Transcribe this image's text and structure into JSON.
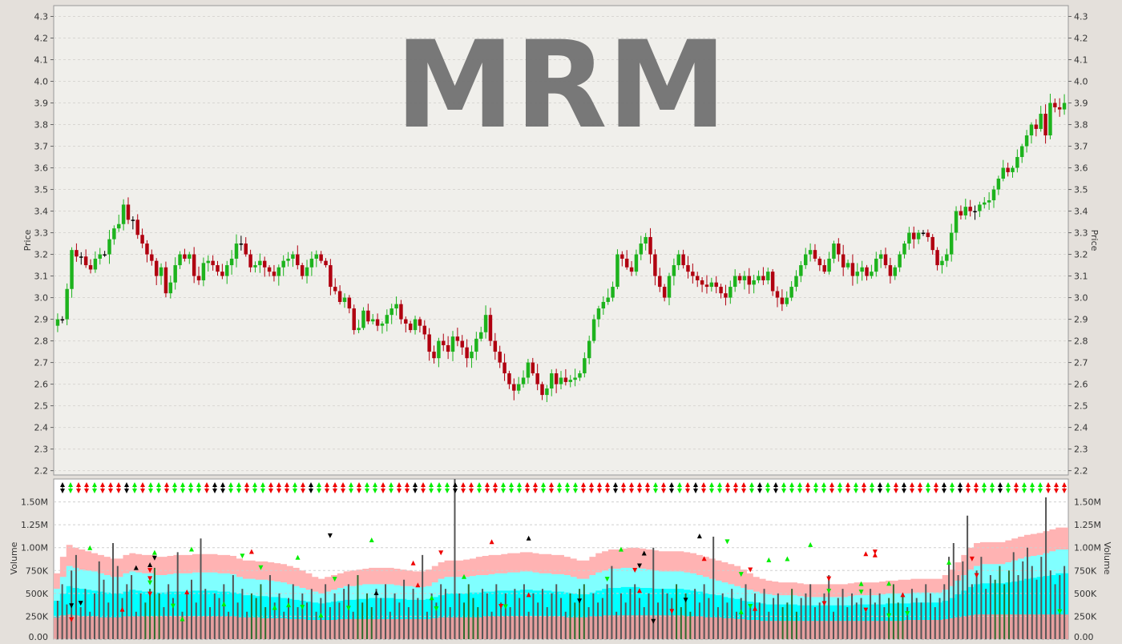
{
  "watermark": "MRM",
  "colors": {
    "up": "#1db31d",
    "down": "#b00010",
    "neutral": "#000000",
    "vol_band_outer": "#ffb3b3",
    "vol_band_mid": "#80ffff",
    "vol_band_inner": "#00ffff",
    "vol_band_base": "#e6a0a0",
    "marker_up": "#00ee00",
    "marker_down": "#ee0000"
  },
  "chart_data": [
    {
      "type": "candlestick",
      "ylabel": "Price",
      "ylim": [
        2.18,
        4.35
      ],
      "yticks": [
        "2.2",
        "2.3",
        "2.4",
        "2.5",
        "2.6",
        "2.7",
        "2.8",
        "2.9",
        "3.0",
        "3.1",
        "3.2",
        "3.3",
        "3.4",
        "3.5",
        "3.6",
        "3.7",
        "3.8",
        "3.9",
        "4.0",
        "4.1",
        "4.2",
        "4.3"
      ],
      "grid": true,
      "close": [
        2.9,
        2.9,
        3.04,
        3.22,
        3.19,
        3.19,
        3.15,
        3.13,
        3.18,
        3.2,
        3.2,
        3.27,
        3.32,
        3.34,
        3.43,
        3.36,
        3.36,
        3.29,
        3.25,
        3.2,
        3.17,
        3.1,
        3.14,
        3.02,
        3.07,
        3.15,
        3.2,
        3.18,
        3.2,
        3.1,
        3.08,
        3.16,
        3.17,
        3.15,
        3.12,
        3.1,
        3.15,
        3.18,
        3.25,
        3.25,
        3.2,
        3.14,
        3.15,
        3.17,
        3.14,
        3.12,
        3.1,
        3.14,
        3.17,
        3.18,
        3.2,
        3.15,
        3.1,
        3.14,
        3.18,
        3.2,
        3.17,
        3.15,
        3.05,
        3.03,
        2.98,
        3.0,
        2.95,
        2.85,
        2.86,
        2.94,
        2.89,
        2.9,
        2.87,
        2.88,
        2.92,
        2.95,
        2.97,
        2.9,
        2.88,
        2.85,
        2.9,
        2.87,
        2.83,
        2.75,
        2.72,
        2.8,
        2.78,
        2.75,
        2.82,
        2.8,
        2.77,
        2.72,
        2.75,
        2.81,
        2.84,
        2.92,
        2.8,
        2.75,
        2.7,
        2.65,
        2.6,
        2.57,
        2.6,
        2.63,
        2.7,
        2.65,
        2.6,
        2.55,
        2.58,
        2.65,
        2.6,
        2.63,
        2.61,
        2.62,
        2.63,
        2.65,
        2.72,
        2.8,
        2.9,
        2.95,
        2.98,
        3.0,
        3.05,
        3.2,
        3.18,
        3.14,
        3.12,
        3.2,
        3.25,
        3.28,
        3.2,
        3.1,
        3.05,
        3.0,
        3.1,
        3.15,
        3.2,
        3.15,
        3.12,
        3.1,
        3.08,
        3.06,
        3.05,
        3.07,
        3.05,
        3.02,
        3.0,
        3.05,
        3.1,
        3.08,
        3.1,
        3.06,
        3.08,
        3.1,
        3.08,
        3.12,
        3.03,
        3.0,
        2.97,
        3.0,
        3.05,
        3.1,
        3.15,
        3.2,
        3.22,
        3.18,
        3.15,
        3.12,
        3.18,
        3.25,
        3.2,
        3.14,
        3.16,
        3.1,
        3.12,
        3.14,
        3.1,
        3.12,
        3.18,
        3.2,
        3.15,
        3.1,
        3.14,
        3.2,
        3.25,
        3.3,
        3.27,
        3.3,
        3.3,
        3.28,
        3.22,
        3.15,
        3.17,
        3.2,
        3.3,
        3.4,
        3.38,
        3.42,
        3.4,
        3.4,
        3.43,
        3.44,
        3.45,
        3.5,
        3.55,
        3.6,
        3.58,
        3.6,
        3.65,
        3.7,
        3.75,
        3.8,
        3.78,
        3.85,
        3.75,
        3.9,
        3.88,
        3.87,
        3.9
      ]
    },
    {
      "type": "bar",
      "ylabel": "Volume",
      "ylim": [
        0,
        1.75
      ],
      "yticks": [
        "0.00",
        "250K",
        "500K",
        "750K",
        "1.00M",
        "1.25M",
        "1.50M"
      ],
      "grid": true,
      "values": [
        0.42,
        0.6,
        0.38,
        0.75,
        0.92,
        0.35,
        0.55,
        0.3,
        0.5,
        0.85,
        0.65,
        0.4,
        1.05,
        0.8,
        0.45,
        0.6,
        0.7,
        0.3,
        0.5,
        0.4,
        0.55,
        0.78,
        0.5,
        0.35,
        0.6,
        0.45,
        0.95,
        0.3,
        0.5,
        0.65,
        0.4,
        1.1,
        0.55,
        0.35,
        0.5,
        0.45,
        0.6,
        0.3,
        0.7,
        0.4,
        0.55,
        0.3,
        0.5,
        0.45,
        0.6,
        0.35,
        0.7,
        0.4,
        0.5,
        0.3,
        0.45,
        0.6,
        0.35,
        0.5,
        0.4,
        0.55,
        0.3,
        0.45,
        0.6,
        0.35,
        0.5,
        0.4,
        0.55,
        0.6,
        0.3,
        0.7,
        0.4,
        0.5,
        0.35,
        0.55,
        0.45,
        0.6,
        0.3,
        0.5,
        0.4,
        0.65,
        0.35,
        0.55,
        0.45,
        0.92,
        0.3,
        0.5,
        0.4,
        0.6,
        0.55,
        0.35,
        1.75,
        0.5,
        0.4,
        0.6,
        0.45,
        0.35,
        0.55,
        0.5,
        0.3,
        0.6,
        0.4,
        0.5,
        0.35,
        0.55,
        0.45,
        0.6,
        0.3,
        0.5,
        0.4,
        0.55,
        0.35,
        0.5,
        0.6,
        0.45,
        0.3,
        0.5,
        0.4,
        0.55,
        0.6,
        0.35,
        0.5,
        0.4,
        0.45,
        0.6,
        0.8,
        0.3,
        0.5,
        0.4,
        0.55,
        0.6,
        0.45,
        0.35,
        0.5,
        1.0,
        0.4,
        0.55,
        0.5,
        0.45,
        0.6,
        0.35,
        0.5,
        0.3,
        0.55,
        0.4,
        0.6,
        0.45,
        1.12,
        0.35,
        0.5,
        0.4,
        0.55,
        0.3,
        0.45,
        0.6,
        0.35,
        0.5,
        0.4,
        0.55,
        0.3,
        0.45,
        0.5,
        0.35,
        0.4,
        0.55,
        0.3,
        0.45,
        0.5,
        0.6,
        0.35,
        0.4,
        0.5,
        0.7,
        0.3,
        0.45,
        0.55,
        0.35,
        0.5,
        0.4,
        0.45,
        0.3,
        0.55,
        0.4,
        0.5,
        0.35,
        0.45,
        0.6,
        0.4,
        0.5,
        0.35,
        0.55,
        0.45,
        0.4,
        0.6,
        0.5,
        0.35,
        0.45,
        0.6,
        0.9,
        1.05,
        0.7,
        0.85,
        1.35,
        0.6,
        0.75,
        0.9,
        0.55,
        0.7,
        0.65,
        0.8,
        0.6,
        0.75,
        0.95,
        0.7,
        0.85,
        1.0,
        0.8,
        0.65,
        0.9,
        1.55,
        0.75,
        0.6,
        0.7,
        0.8
      ],
      "bands": {
        "outer": [
          0.72,
          0.9,
          1.03,
          1.0,
          0.98,
          0.96,
          0.94,
          0.92,
          0.9,
          0.88,
          0.88,
          0.92,
          0.94,
          0.93,
          0.92,
          0.92,
          0.9,
          0.9,
          0.91,
          0.92,
          0.92,
          0.92,
          0.93,
          0.93,
          0.93,
          0.93,
          0.92,
          0.92,
          0.91,
          0.88,
          0.86,
          0.86,
          0.85,
          0.85,
          0.84,
          0.83,
          0.82,
          0.8,
          0.78,
          0.75,
          0.72,
          0.68,
          0.66,
          0.68,
          0.7,
          0.72,
          0.74,
          0.75,
          0.76,
          0.77,
          0.78,
          0.78,
          0.78,
          0.78,
          0.77,
          0.76,
          0.75,
          0.74,
          0.74,
          0.76,
          0.8,
          0.84,
          0.86,
          0.86,
          0.86,
          0.87,
          0.88,
          0.9,
          0.91,
          0.92,
          0.92,
          0.93,
          0.94,
          0.94,
          0.95,
          0.95,
          0.94,
          0.93,
          0.93,
          0.92,
          0.92,
          0.9,
          0.88,
          0.86,
          0.86,
          0.9,
          0.94,
          0.96,
          0.98,
          0.98,
          0.99,
          1.0,
          1.0,
          0.99,
          0.98,
          0.97,
          0.96,
          0.96,
          0.96,
          0.96,
          0.95,
          0.94,
          0.92,
          0.9,
          0.88,
          0.86,
          0.84,
          0.82,
          0.8,
          0.76,
          0.72,
          0.68,
          0.66,
          0.64,
          0.63,
          0.62,
          0.62,
          0.62,
          0.61,
          0.6,
          0.6,
          0.6,
          0.6,
          0.6,
          0.6,
          0.6,
          0.61,
          0.62,
          0.62,
          0.62,
          0.62,
          0.63,
          0.64,
          0.64,
          0.65,
          0.65,
          0.66,
          0.66,
          0.66,
          0.66,
          0.66,
          0.7,
          0.76,
          0.84,
          0.92,
          1.0,
          1.05,
          1.06,
          1.06,
          1.06,
          1.06,
          1.08,
          1.1,
          1.12,
          1.14,
          1.15,
          1.16,
          1.18,
          1.2,
          1.22,
          1.22
        ],
        "mid": [
          0.55,
          0.68,
          0.8,
          0.78,
          0.76,
          0.75,
          0.74,
          0.72,
          0.7,
          0.68,
          0.68,
          0.72,
          0.74,
          0.73,
          0.72,
          0.72,
          0.7,
          0.7,
          0.71,
          0.72,
          0.72,
          0.72,
          0.73,
          0.73,
          0.73,
          0.73,
          0.72,
          0.72,
          0.71,
          0.68,
          0.66,
          0.66,
          0.65,
          0.65,
          0.64,
          0.63,
          0.62,
          0.6,
          0.58,
          0.56,
          0.54,
          0.52,
          0.5,
          0.52,
          0.54,
          0.56,
          0.58,
          0.58,
          0.59,
          0.6,
          0.6,
          0.6,
          0.6,
          0.6,
          0.59,
          0.58,
          0.58,
          0.57,
          0.57,
          0.58,
          0.62,
          0.66,
          0.68,
          0.68,
          0.68,
          0.68,
          0.69,
          0.7,
          0.7,
          0.71,
          0.72,
          0.72,
          0.73,
          0.73,
          0.74,
          0.74,
          0.73,
          0.72,
          0.72,
          0.71,
          0.71,
          0.7,
          0.68,
          0.66,
          0.66,
          0.7,
          0.73,
          0.75,
          0.77,
          0.77,
          0.78,
          0.78,
          0.78,
          0.77,
          0.76,
          0.75,
          0.74,
          0.74,
          0.74,
          0.74,
          0.73,
          0.72,
          0.7,
          0.68,
          0.66,
          0.64,
          0.62,
          0.6,
          0.58,
          0.56,
          0.54,
          0.52,
          0.5,
          0.49,
          0.48,
          0.48,
          0.48,
          0.48,
          0.47,
          0.46,
          0.46,
          0.46,
          0.46,
          0.46,
          0.46,
          0.46,
          0.47,
          0.48,
          0.48,
          0.48,
          0.48,
          0.49,
          0.5,
          0.5,
          0.5,
          0.5,
          0.51,
          0.51,
          0.51,
          0.51,
          0.51,
          0.54,
          0.58,
          0.64,
          0.7,
          0.76,
          0.8,
          0.82,
          0.82,
          0.82,
          0.82,
          0.84,
          0.86,
          0.88,
          0.9,
          0.91,
          0.92,
          0.94,
          0.96,
          0.98,
          0.98
        ],
        "inner": [
          0.42,
          0.5,
          0.58,
          0.56,
          0.55,
          0.54,
          0.53,
          0.52,
          0.51,
          0.5,
          0.5,
          0.52,
          0.54,
          0.53,
          0.52,
          0.52,
          0.51,
          0.51,
          0.52,
          0.52,
          0.52,
          0.52,
          0.53,
          0.53,
          0.53,
          0.53,
          0.52,
          0.52,
          0.51,
          0.5,
          0.48,
          0.48,
          0.47,
          0.47,
          0.46,
          0.46,
          0.45,
          0.44,
          0.43,
          0.42,
          0.41,
          0.4,
          0.39,
          0.4,
          0.41,
          0.42,
          0.43,
          0.43,
          0.44,
          0.44,
          0.45,
          0.45,
          0.45,
          0.45,
          0.44,
          0.44,
          0.43,
          0.43,
          0.43,
          0.44,
          0.46,
          0.48,
          0.5,
          0.5,
          0.5,
          0.5,
          0.51,
          0.51,
          0.52,
          0.52,
          0.53,
          0.53,
          0.53,
          0.53,
          0.54,
          0.54,
          0.53,
          0.53,
          0.53,
          0.52,
          0.52,
          0.51,
          0.5,
          0.49,
          0.49,
          0.51,
          0.53,
          0.55,
          0.56,
          0.56,
          0.57,
          0.57,
          0.57,
          0.56,
          0.56,
          0.55,
          0.55,
          0.55,
          0.55,
          0.55,
          0.54,
          0.53,
          0.52,
          0.5,
          0.49,
          0.48,
          0.46,
          0.45,
          0.44,
          0.42,
          0.41,
          0.4,
          0.39,
          0.38,
          0.38,
          0.38,
          0.38,
          0.38,
          0.37,
          0.37,
          0.37,
          0.37,
          0.37,
          0.37,
          0.37,
          0.37,
          0.37,
          0.38,
          0.38,
          0.38,
          0.38,
          0.38,
          0.39,
          0.39,
          0.39,
          0.39,
          0.4,
          0.4,
          0.4,
          0.4,
          0.4,
          0.42,
          0.45,
          0.49,
          0.53,
          0.57,
          0.6,
          0.61,
          0.61,
          0.61,
          0.61,
          0.62,
          0.63,
          0.64,
          0.66,
          0.67,
          0.68,
          0.69,
          0.7,
          0.72,
          0.72
        ],
        "base": [
          0.24,
          0.26,
          0.27,
          0.26,
          0.25,
          0.25,
          0.25,
          0.24,
          0.24,
          0.24,
          0.24,
          0.25,
          0.25,
          0.25,
          0.25,
          0.25,
          0.25,
          0.25,
          0.25,
          0.25,
          0.25,
          0.25,
          0.25,
          0.25,
          0.25,
          0.25,
          0.25,
          0.25,
          0.25,
          0.24,
          0.24,
          0.24,
          0.24,
          0.23,
          0.23,
          0.23,
          0.23,
          0.22,
          0.22,
          0.22,
          0.21,
          0.21,
          0.21,
          0.21,
          0.21,
          0.22,
          0.22,
          0.22,
          0.22,
          0.22,
          0.22,
          0.22,
          0.22,
          0.22,
          0.22,
          0.22,
          0.22,
          0.22,
          0.22,
          0.22,
          0.23,
          0.24,
          0.24,
          0.24,
          0.24,
          0.24,
          0.24,
          0.24,
          0.25,
          0.25,
          0.25,
          0.25,
          0.25,
          0.25,
          0.25,
          0.25,
          0.25,
          0.25,
          0.25,
          0.25,
          0.25,
          0.24,
          0.24,
          0.24,
          0.24,
          0.25,
          0.25,
          0.26,
          0.26,
          0.26,
          0.26,
          0.26,
          0.26,
          0.26,
          0.26,
          0.26,
          0.26,
          0.26,
          0.26,
          0.26,
          0.25,
          0.25,
          0.25,
          0.24,
          0.24,
          0.24,
          0.23,
          0.23,
          0.22,
          0.22,
          0.21,
          0.21,
          0.2,
          0.2,
          0.2,
          0.2,
          0.2,
          0.2,
          0.2,
          0.2,
          0.2,
          0.2,
          0.2,
          0.2,
          0.2,
          0.2,
          0.2,
          0.2,
          0.2,
          0.2,
          0.2,
          0.2,
          0.2,
          0.2,
          0.2,
          0.21,
          0.21,
          0.21,
          0.21,
          0.21,
          0.21,
          0.22,
          0.23,
          0.24,
          0.25,
          0.26,
          0.27,
          0.27,
          0.27,
          0.27,
          0.27,
          0.27,
          0.27,
          0.27,
          0.27,
          0.27,
          0.27,
          0.27,
          0.27,
          0.27,
          0.27
        ]
      }
    }
  ]
}
